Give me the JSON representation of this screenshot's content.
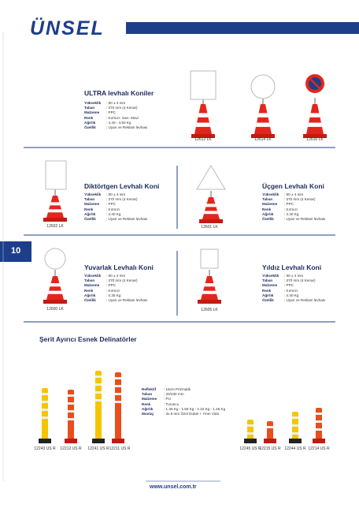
{
  "header": {
    "brand": "ÜNSEL"
  },
  "page_number": "10",
  "footer": {
    "url": "www.unsel.com.tr"
  },
  "sections": [
    {
      "title": "ULTRA levhalı Koniler",
      "specs": [
        [
          "Yükseklik",
          ": 90 ± 4 mm"
        ],
        [
          "Taban",
          ": 370 mm (4 Kenar)"
        ],
        [
          "Malzeme",
          ": PPC"
        ],
        [
          "Renk",
          ": Kırmızı- Sarı- Mavi"
        ],
        [
          "Ağırlık",
          ": 4.40 - 4.50 Kg"
        ],
        [
          "Özellik",
          ": Uyarı ve Reklam levhası"
        ]
      ],
      "products": [
        "12612 LK",
        "12614 LK",
        "12616 LK"
      ]
    },
    {
      "title": "Diktörtgen Levhalı Koni",
      "specs": [
        [
          "Yükseklik",
          ": 90 ± 4 mm"
        ],
        [
          "Taban",
          ": 370 mm (4 Kenar)"
        ],
        [
          "Malzeme",
          ": PPC"
        ],
        [
          "Renk",
          ": Kırmızı"
        ],
        [
          "Ağırlık",
          ": 4.40 Kg"
        ],
        [
          "Özellik",
          ": Uyarı ve Reklam levhası"
        ]
      ],
      "products": [
        "12602 LK"
      ]
    },
    {
      "title": "Üçgen Levhalı Koni",
      "specs": [
        [
          "Yükseklik",
          ": 90 ± 4 mm"
        ],
        [
          "Taban",
          ": 370 mm (4 Kenar)"
        ],
        [
          "Malzeme",
          ": PPC"
        ],
        [
          "Renk",
          ": Kırmızı"
        ],
        [
          "Ağırlık",
          ": 4.40 Kg"
        ],
        [
          "Özellik",
          ": Uyarı ve Reklam levhası"
        ]
      ],
      "products": [
        "12601 LK"
      ]
    },
    {
      "title": "Yuvarlak Levhalı Koni",
      "specs": [
        [
          "Yükseklik",
          ": 90 ± 4 mm"
        ],
        [
          "Taban",
          ": 370 mm (4 Kenar)"
        ],
        [
          "Malzeme",
          ": PPC"
        ],
        [
          "Renk",
          ": Kırmızı"
        ],
        [
          "Ağırlık",
          ": 4.35 Kg"
        ],
        [
          "Özellik",
          ": Uyarı ve Reklam levhası"
        ]
      ],
      "products": [
        "12600 LK"
      ]
    },
    {
      "title": "Yıldız Levhalı Koni",
      "specs": [
        [
          "Yükseklik",
          ": 90 ± 4 mm"
        ],
        [
          "Taban",
          ": 370 mm (4 Kenar)"
        ],
        [
          "Malzeme",
          ": PPC"
        ],
        [
          "Renk",
          ": Kırmızı"
        ],
        [
          "Ağırlık",
          ": 4.40 Kg"
        ],
        [
          "Özellik",
          ": Uyarı ve Reklam levhası"
        ]
      ],
      "products": [
        "12605 LK"
      ]
    },
    {
      "title": "Şerit Ayırıcı Esnek Delinatörler",
      "specs": [
        [
          "Reflektif",
          ": 16cm Prizmatik"
        ],
        [
          "Taban",
          ": 20/230 mm"
        ],
        [
          "Malzeme",
          ": PU"
        ],
        [
          "Renk",
          ": Turuncu"
        ],
        [
          "Ağırlık",
          ": 1.36 Kg - 1.55 Kg - 1.22 Kg - 1.46 Kg"
        ],
        [
          "Montaj",
          ": 3x 8 mm Özel Dubel + 7mm Vida"
        ]
      ],
      "products": [
        "12243 US R",
        "12212 US R",
        "12241 US R",
        "12211 US R",
        "12245 US R",
        "12215 US R",
        "12244 US R",
        "12214 US R"
      ]
    }
  ]
}
